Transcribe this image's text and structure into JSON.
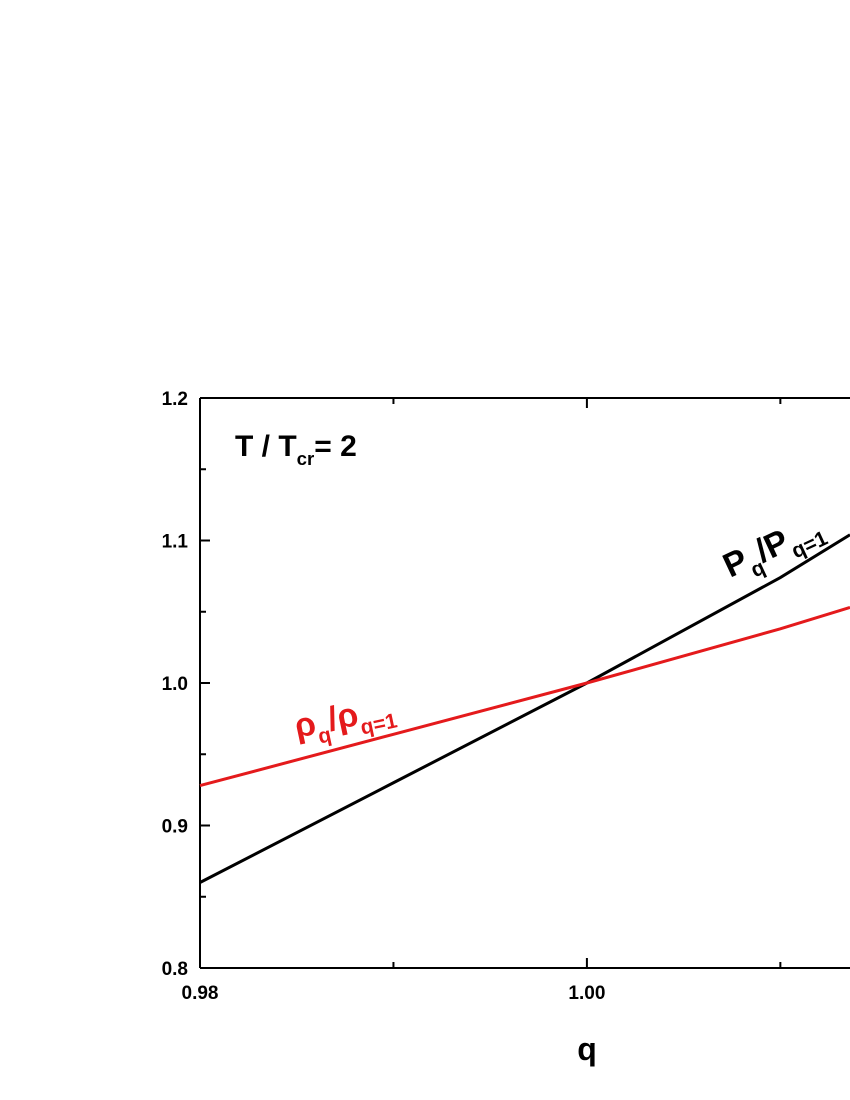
{
  "chart_data": {
    "type": "line",
    "x": [
      0.98,
      0.99,
      1.0,
      1.01,
      1.0136
    ],
    "series": [
      {
        "label_parts": [
          "P",
          "q",
          "/P",
          "q=1"
        ],
        "color": "#000000",
        "values": [
          0.86,
          0.93,
          1.0,
          1.074,
          1.104
        ]
      },
      {
        "label_parts": [
          "ρ",
          "q",
          "/ρ",
          "q=1"
        ],
        "color": "#e41a1c",
        "values": [
          0.928,
          0.964,
          1.0,
          1.038,
          1.053
        ]
      }
    ],
    "annotation_parts": [
      "T / T",
      "cr",
      "= 2"
    ],
    "xlabel": "q",
    "xlim": [
      0.98,
      1.0136
    ],
    "xticks": [
      0.98,
      {
        "value": 1.0,
        "label": "1.00"
      }
    ],
    "ylim": [
      0.8,
      1.2
    ],
    "yticks": [
      0.8,
      0.9,
      {
        "value": 1.0,
        "label": "1.0"
      },
      1.1,
      1.2
    ]
  }
}
